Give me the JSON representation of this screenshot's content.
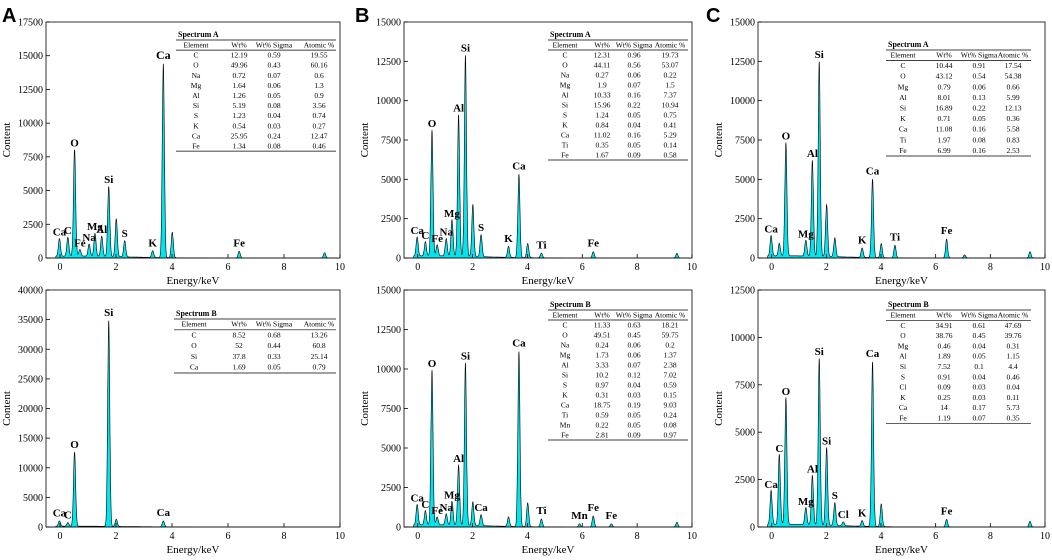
{
  "figure": {
    "panels": [
      "A",
      "B",
      "C"
    ]
  },
  "chart_data": [
    {
      "id": "A-top",
      "panel": "A",
      "type": "area",
      "xlabel": "Energy/keV",
      "ylabel": "Content",
      "xlim": [
        -0.5,
        10
      ],
      "ylim": [
        0,
        17500
      ],
      "xticks": [
        0,
        2,
        4,
        6,
        8,
        10
      ],
      "yticks": [
        0,
        2500,
        5000,
        7500,
        10000,
        12500,
        15000,
        17500
      ],
      "peaks": [
        {
          "x": -0.02,
          "y": 1300,
          "label": "Ca",
          "size": "small"
        },
        {
          "x": 0.28,
          "y": 1400,
          "label": "C",
          "size": "small"
        },
        {
          "x": 0.52,
          "y": 7900,
          "label": "O"
        },
        {
          "x": 0.71,
          "y": 500,
          "label": "Fe",
          "size": "small"
        },
        {
          "x": 1.04,
          "y": 900,
          "label": "Na",
          "size": "small"
        },
        {
          "x": 1.25,
          "y": 1700,
          "label": "Mg",
          "size": "small"
        },
        {
          "x": 1.49,
          "y": 1500,
          "label": "Al",
          "size": "small"
        },
        {
          "x": 1.74,
          "y": 5200,
          "label": "Si"
        },
        {
          "x": 2.01,
          "y": 2800,
          "label": ""
        },
        {
          "x": 2.31,
          "y": 1200,
          "label": "S"
        },
        {
          "x": 3.31,
          "y": 500,
          "label": "K"
        },
        {
          "x": 3.69,
          "y": 14400,
          "label": "Ca",
          "size": "big"
        },
        {
          "x": 4.01,
          "y": 1900,
          "label": ""
        },
        {
          "x": 6.4,
          "y": 500,
          "label": "Fe"
        },
        {
          "x": 9.45,
          "y": 400,
          "label": ""
        }
      ],
      "table": {
        "title": "Spectrum A",
        "columns": [
          "Element",
          "Wt%",
          "Wt% Sigma",
          "Atomic %"
        ],
        "rows": [
          [
            "C",
            "12.19",
            "0.59",
            "19.55"
          ],
          [
            "O",
            "49.96",
            "0.43",
            "60.16"
          ],
          [
            "Na",
            "0.72",
            "0.07",
            "0.6"
          ],
          [
            "Mg",
            "1.64",
            "0.06",
            "1.3"
          ],
          [
            "Al",
            "1.26",
            "0.05",
            "0.9"
          ],
          [
            "Si",
            "5.19",
            "0.08",
            "3.56"
          ],
          [
            "S",
            "1.23",
            "0.04",
            "0.74"
          ],
          [
            "K",
            "0.54",
            "0.03",
            "0.27"
          ],
          [
            "Ca",
            "25.95",
            "0.24",
            "12.47"
          ],
          [
            "Fe",
            "1.34",
            "0.08",
            "0.46"
          ]
        ]
      }
    },
    {
      "id": "A-bottom",
      "panel": "A",
      "type": "area",
      "xlabel": "Energy/keV",
      "ylabel": "Content",
      "xlim": [
        -0.5,
        10
      ],
      "ylim": [
        0,
        40000
      ],
      "xticks": [
        0,
        2,
        4,
        6,
        8,
        10
      ],
      "yticks": [
        0,
        5000,
        10000,
        15000,
        20000,
        25000,
        30000,
        35000,
        40000
      ],
      "peaks": [
        {
          "x": -0.02,
          "y": 900,
          "label": "Ca",
          "size": "small"
        },
        {
          "x": 0.28,
          "y": 600,
          "label": "C",
          "size": "small"
        },
        {
          "x": 0.52,
          "y": 12500,
          "label": "O"
        },
        {
          "x": 1.74,
          "y": 34800,
          "label": "Si"
        },
        {
          "x": 2.01,
          "y": 1200,
          "label": ""
        },
        {
          "x": 3.69,
          "y": 1000,
          "label": "Ca"
        }
      ],
      "table": {
        "title": "Spectrum B",
        "columns": [
          "Element",
          "Wt%",
          "Wt% Sigma",
          "Atomic %"
        ],
        "rows": [
          [
            "C",
            "8.52",
            "0.68",
            "13.26"
          ],
          [
            "O",
            "52",
            "0.44",
            "60.8"
          ],
          [
            "Si",
            "37.8",
            "0.33",
            "25.14"
          ],
          [
            "Ca",
            "1.69",
            "0.05",
            "0.79"
          ]
        ]
      }
    },
    {
      "id": "B-top",
      "panel": "B",
      "type": "area",
      "xlabel": "Energy/keV",
      "ylabel": "Content",
      "xlim": [
        -0.5,
        10
      ],
      "ylim": [
        0,
        15000
      ],
      "xticks": [
        0,
        2,
        4,
        6,
        8,
        10
      ],
      "yticks": [
        0,
        2500,
        5000,
        7500,
        10000,
        12500,
        15000
      ],
      "peaks": [
        {
          "x": -0.02,
          "y": 1200,
          "label": "Ca",
          "size": "small"
        },
        {
          "x": 0.28,
          "y": 900,
          "label": "C",
          "size": "small"
        },
        {
          "x": 0.52,
          "y": 8000,
          "label": "O"
        },
        {
          "x": 0.71,
          "y": 700,
          "label": "Fe",
          "size": "small"
        },
        {
          "x": 1.04,
          "y": 1100,
          "label": "Na",
          "size": "small"
        },
        {
          "x": 1.25,
          "y": 2300,
          "label": "Mg",
          "size": "small"
        },
        {
          "x": 1.49,
          "y": 9000,
          "label": "Al"
        },
        {
          "x": 1.74,
          "y": 12800,
          "label": "Si"
        },
        {
          "x": 2.01,
          "y": 3300,
          "label": ""
        },
        {
          "x": 2.31,
          "y": 1400,
          "label": "S"
        },
        {
          "x": 3.31,
          "y": 700,
          "label": "K"
        },
        {
          "x": 3.69,
          "y": 5300,
          "label": "Ca"
        },
        {
          "x": 4.01,
          "y": 900,
          "label": ""
        },
        {
          "x": 4.51,
          "y": 300,
          "label": "Ti"
        },
        {
          "x": 6.4,
          "y": 400,
          "label": "Fe"
        },
        {
          "x": 9.45,
          "y": 300,
          "label": ""
        }
      ],
      "table": {
        "title": "Spectrum A",
        "columns": [
          "Element",
          "Wt%",
          "Wt% Sigma",
          "Atomic %"
        ],
        "rows": [
          [
            "C",
            "12.31",
            "0.96",
            "19.73"
          ],
          [
            "O",
            "44.11",
            "0.56",
            "53.07"
          ],
          [
            "Na",
            "0.27",
            "0.06",
            "0.22"
          ],
          [
            "Mg",
            "1.9",
            "0.07",
            "1.5"
          ],
          [
            "Al",
            "10.33",
            "0.16",
            "7.37"
          ],
          [
            "Si",
            "15.96",
            "0.22",
            "10.94"
          ],
          [
            "S",
            "1.24",
            "0.05",
            "0.75"
          ],
          [
            "K",
            "0.84",
            "0.04",
            "0.41"
          ],
          [
            "Ca",
            "11.02",
            "0.16",
            "5.29"
          ],
          [
            "Ti",
            "0.35",
            "0.05",
            "0.14"
          ],
          [
            "Fe",
            "1.67",
            "0.09",
            "0.58"
          ]
        ]
      }
    },
    {
      "id": "B-bottom",
      "panel": "B",
      "type": "area",
      "xlabel": "Energy/keV",
      "ylabel": "Content",
      "xlim": [
        -0.5,
        10
      ],
      "ylim": [
        0,
        15000
      ],
      "xticks": [
        0,
        2,
        4,
        6,
        8,
        10
      ],
      "yticks": [
        0,
        2500,
        5000,
        7500,
        10000,
        12500,
        15000
      ],
      "peaks": [
        {
          "x": -0.02,
          "y": 1300,
          "label": "Ca"
        },
        {
          "x": 0.28,
          "y": 900,
          "label": "C",
          "size": "small"
        },
        {
          "x": 0.52,
          "y": 9800,
          "label": "O"
        },
        {
          "x": 0.71,
          "y": 500,
          "label": "Fe",
          "size": "small"
        },
        {
          "x": 1.04,
          "y": 700,
          "label": "Na",
          "size": "small"
        },
        {
          "x": 1.25,
          "y": 1500,
          "label": "Mg"
        },
        {
          "x": 1.49,
          "y": 3800,
          "label": "Al"
        },
        {
          "x": 1.74,
          "y": 10300,
          "label": "Si"
        },
        {
          "x": 2.01,
          "y": 1500,
          "label": ""
        },
        {
          "x": 2.31,
          "y": 700,
          "label": "Ca"
        },
        {
          "x": 3.31,
          "y": 600,
          "label": ""
        },
        {
          "x": 3.69,
          "y": 11100,
          "label": "Ca"
        },
        {
          "x": 4.01,
          "y": 1500,
          "label": ""
        },
        {
          "x": 4.51,
          "y": 500,
          "label": "Ti"
        },
        {
          "x": 5.9,
          "y": 200,
          "label": "Mn"
        },
        {
          "x": 6.4,
          "y": 700,
          "label": "Fe"
        },
        {
          "x": 7.06,
          "y": 200,
          "label": "Fe"
        },
        {
          "x": 9.45,
          "y": 300,
          "label": ""
        }
      ],
      "table": {
        "title": "Spectrum B",
        "columns": [
          "Element",
          "Wt%",
          "Wt% Sigma",
          "Atomic %"
        ],
        "rows": [
          [
            "C",
            "11.33",
            "0.63",
            "18.21"
          ],
          [
            "O",
            "49.51",
            "0.45",
            "59.75"
          ],
          [
            "Na",
            "0.24",
            "0.06",
            "0.2"
          ],
          [
            "Mg",
            "1.73",
            "0.06",
            "1.37"
          ],
          [
            "Al",
            "3.33",
            "0.07",
            "2.38"
          ],
          [
            "Si",
            "10.2",
            "0.12",
            "7.02"
          ],
          [
            "S",
            "0.97",
            "0.04",
            "0.59"
          ],
          [
            "K",
            "0.31",
            "0.03",
            "0.15"
          ],
          [
            "Ca",
            "18.75",
            "0.19",
            "9.03"
          ],
          [
            "Ti",
            "0.59",
            "0.05",
            "0.24"
          ],
          [
            "Mn",
            "0.22",
            "0.05",
            "0.08"
          ],
          [
            "Fe",
            "2.81",
            "0.09",
            "0.97"
          ]
        ]
      }
    },
    {
      "id": "C-top",
      "panel": "C",
      "type": "area",
      "xlabel": "Energy/keV",
      "ylabel": "Content",
      "xlim": [
        -0.5,
        10
      ],
      "ylim": [
        0,
        15000
      ],
      "xticks": [
        0,
        2,
        4,
        6,
        8,
        10
      ],
      "yticks": [
        0,
        2500,
        5000,
        7500,
        10000,
        12500,
        15000
      ],
      "peaks": [
        {
          "x": -0.02,
          "y": 1300,
          "label": "Ca"
        },
        {
          "x": 0.28,
          "y": 800,
          "label": ""
        },
        {
          "x": 0.52,
          "y": 7200,
          "label": "O"
        },
        {
          "x": 1.25,
          "y": 1000,
          "label": "Mg",
          "size": "small"
        },
        {
          "x": 1.49,
          "y": 6100,
          "label": "Al"
        },
        {
          "x": 1.74,
          "y": 12400,
          "label": "Si"
        },
        {
          "x": 2.01,
          "y": 3300,
          "label": ""
        },
        {
          "x": 2.31,
          "y": 1200,
          "label": ""
        },
        {
          "x": 3.31,
          "y": 600,
          "label": "K"
        },
        {
          "x": 3.69,
          "y": 5000,
          "label": "Ca"
        },
        {
          "x": 4.01,
          "y": 900,
          "label": ""
        },
        {
          "x": 4.51,
          "y": 800,
          "label": "Ti"
        },
        {
          "x": 6.4,
          "y": 1200,
          "label": "Fe"
        },
        {
          "x": 7.06,
          "y": 200,
          "label": ""
        },
        {
          "x": 9.45,
          "y": 400,
          "label": ""
        }
      ],
      "table": {
        "title": "Spectrum A",
        "columns": [
          "Element",
          "Wt%",
          "Wt% Sigma",
          "Atomic %"
        ],
        "rows": [
          [
            "C",
            "10.44",
            "0.91",
            "17.54"
          ],
          [
            "O",
            "43.12",
            "0.54",
            "54.38"
          ],
          [
            "Mg",
            "0.79",
            "0.06",
            "0.66"
          ],
          [
            "Al",
            "8.01",
            "0.13",
            "5.99"
          ],
          [
            "Si",
            "16.89",
            "0.22",
            "12.13"
          ],
          [
            "K",
            "0.71",
            "0.05",
            "0.36"
          ],
          [
            "Ca",
            "11.08",
            "0.16",
            "5.58"
          ],
          [
            "Ti",
            "1.97",
            "0.08",
            "0.83"
          ],
          [
            "Fe",
            "6.99",
            "0.16",
            "2.53"
          ]
        ]
      }
    },
    {
      "id": "C-bottom",
      "panel": "C",
      "type": "area",
      "xlabel": "Energy/keV",
      "ylabel": "Content",
      "xlim": [
        -0.5,
        10
      ],
      "ylim": [
        0,
        12500
      ],
      "xticks": [
        0,
        2,
        4,
        6,
        8,
        10
      ],
      "yticks": [
        0,
        2500,
        5000,
        7500,
        10000,
        12500
      ],
      "peaks": [
        {
          "x": -0.02,
          "y": 1800,
          "label": "Ca"
        },
        {
          "x": 0.28,
          "y": 3700,
          "label": "C"
        },
        {
          "x": 0.52,
          "y": 6700,
          "label": "O"
        },
        {
          "x": 1.25,
          "y": 900,
          "label": "Mg"
        },
        {
          "x": 1.49,
          "y": 2600,
          "label": "Al"
        },
        {
          "x": 1.74,
          "y": 8800,
          "label": "Si"
        },
        {
          "x": 2.01,
          "y": 4100,
          "label": "Si"
        },
        {
          "x": 2.31,
          "y": 1200,
          "label": "S"
        },
        {
          "x": 2.62,
          "y": 200,
          "label": "Cl"
        },
        {
          "x": 3.31,
          "y": 300,
          "label": "K"
        },
        {
          "x": 3.69,
          "y": 8700,
          "label": "Ca"
        },
        {
          "x": 4.01,
          "y": 1200,
          "label": ""
        },
        {
          "x": 6.4,
          "y": 400,
          "label": "Fe"
        },
        {
          "x": 9.45,
          "y": 300,
          "label": ""
        }
      ],
      "table": {
        "title": "Spectrum B",
        "columns": [
          "Element",
          "Wt%",
          "Wt% Sigma",
          "Atomic %"
        ],
        "rows": [
          [
            "C",
            "34.91",
            "0.61",
            "47.69"
          ],
          [
            "O",
            "38.76",
            "0.45",
            "39.76"
          ],
          [
            "Mg",
            "0.46",
            "0.04",
            "0.31"
          ],
          [
            "Al",
            "1.89",
            "0.05",
            "1.15"
          ],
          [
            "Si",
            "7.52",
            "0.1",
            "4.4"
          ],
          [
            "S",
            "0.91",
            "0.04",
            "0.46"
          ],
          [
            "Cl",
            "0.09",
            "0.03",
            "0.04"
          ],
          [
            "K",
            "0.25",
            "0.03",
            "0.11"
          ],
          [
            "Ca",
            "14",
            "0.17",
            "5.73"
          ],
          [
            "Fe",
            "1.19",
            "0.07",
            "0.35"
          ]
        ]
      }
    }
  ]
}
